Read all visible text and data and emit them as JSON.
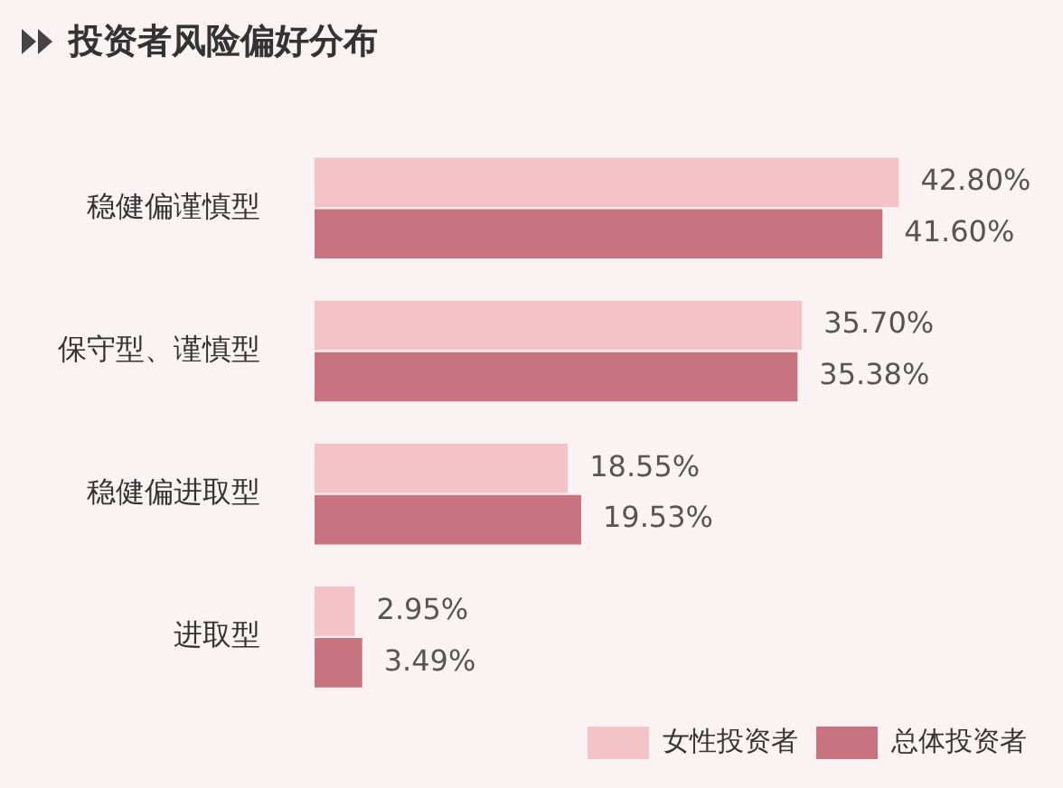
{
  "chart_data": {
    "type": "bar",
    "orientation": "horizontal",
    "title": "投资者风险偏好分布",
    "categories": [
      "稳健偏谨慎型",
      "保守型、谨慎型",
      "稳健偏进取型",
      "进取型"
    ],
    "series": [
      {
        "name": "女性投资者",
        "color": "#f4c3c7",
        "values": [
          42.8,
          35.7,
          18.55,
          2.95
        ],
        "value_labels": [
          "42.80%",
          "35.70%",
          "18.55%",
          "2.95%"
        ]
      },
      {
        "name": "总体投资者",
        "color": "#c8737f",
        "values": [
          41.6,
          35.38,
          19.53,
          3.49
        ],
        "value_labels": [
          "41.60%",
          "35.38%",
          "19.53%",
          "3.49%"
        ]
      }
    ],
    "legend": "bottom right"
  }
}
